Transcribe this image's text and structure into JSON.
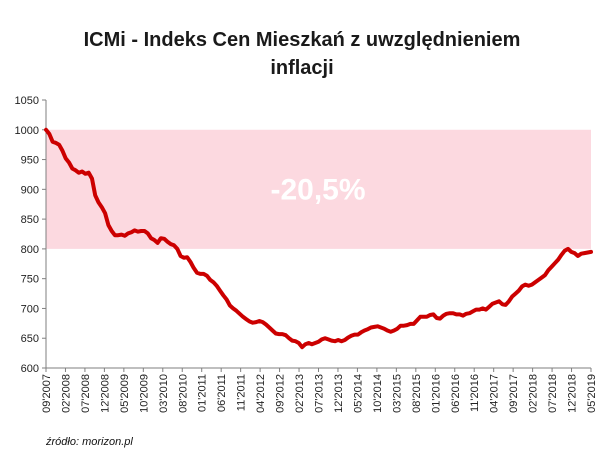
{
  "title_line1": "ICMi - Indeks Cen Mieszkań z uwzględnieniem",
  "title_line2": "inflacji",
  "source": "źródło: morizon.pl",
  "chart_data": {
    "type": "line",
    "title": "ICMi - Indeks Cen Mieszkań z uwzględnieniem inflacji",
    "xlabel": "",
    "ylabel": "",
    "ylim": [
      600,
      1050
    ],
    "yticks": [
      600,
      650,
      700,
      750,
      800,
      850,
      900,
      950,
      1000,
      1050
    ],
    "grid": false,
    "x_tick_labels": [
      "09'2007",
      "02'2008",
      "07'2008",
      "12'2008",
      "05'2009",
      "10'2009",
      "03'2010",
      "08'2010",
      "01'2011",
      "06'2011",
      "11'2011",
      "04'2012",
      "09'2012",
      "02'2013",
      "07'2013",
      "12'2013",
      "05'2014",
      "10'2014",
      "03'2015",
      "08'2015",
      "01'2016",
      "06'2016",
      "11'2016",
      "04'2017",
      "09'2017",
      "02'2018",
      "07'2018",
      "12'2018",
      "05'2019"
    ],
    "band": {
      "from": 800,
      "to": 1000,
      "color": "#fcd9e0"
    },
    "annotation": "-20,5%",
    "line_color": "#cc0000",
    "series": [
      {
        "values": [
          1000,
          993,
          980,
          978,
          975,
          965,
          952,
          945,
          935,
          932,
          928,
          930,
          926,
          928,
          918,
          890,
          878,
          870,
          860,
          840,
          830,
          823,
          823,
          824,
          822,
          826,
          828,
          831,
          829,
          830,
          830,
          826,
          818,
          815,
          810,
          818,
          817,
          812,
          808,
          806,
          800,
          788,
          785,
          786,
          778,
          768,
          760,
          758,
          758,
          755,
          748,
          744,
          738,
          730,
          722,
          715,
          705,
          700,
          696,
          691,
          686,
          682,
          678,
          676,
          677,
          679,
          677,
          673,
          668,
          663,
          658,
          657,
          657,
          655,
          650,
          646,
          645,
          642,
          635,
          640,
          642,
          640,
          642,
          644,
          648,
          650,
          648,
          646,
          645,
          647,
          645,
          647,
          651,
          654,
          656,
          656,
          660,
          663,
          665,
          668,
          669,
          670,
          668,
          666,
          663,
          661,
          663,
          666,
          671,
          671,
          672,
          674,
          674,
          680,
          686,
          686,
          686,
          689,
          690,
          684,
          683,
          688,
          691,
          692,
          692,
          690,
          690,
          688,
          691,
          692,
          695,
          698,
          698,
          700,
          698,
          703,
          708,
          710,
          712,
          707,
          706,
          712,
          720,
          725,
          730,
          737,
          740,
          738,
          740,
          744,
          748,
          752,
          756,
          764,
          770,
          776,
          782,
          790,
          797,
          800,
          795,
          793,
          788,
          792,
          793,
          794,
          795
        ]
      }
    ]
  }
}
